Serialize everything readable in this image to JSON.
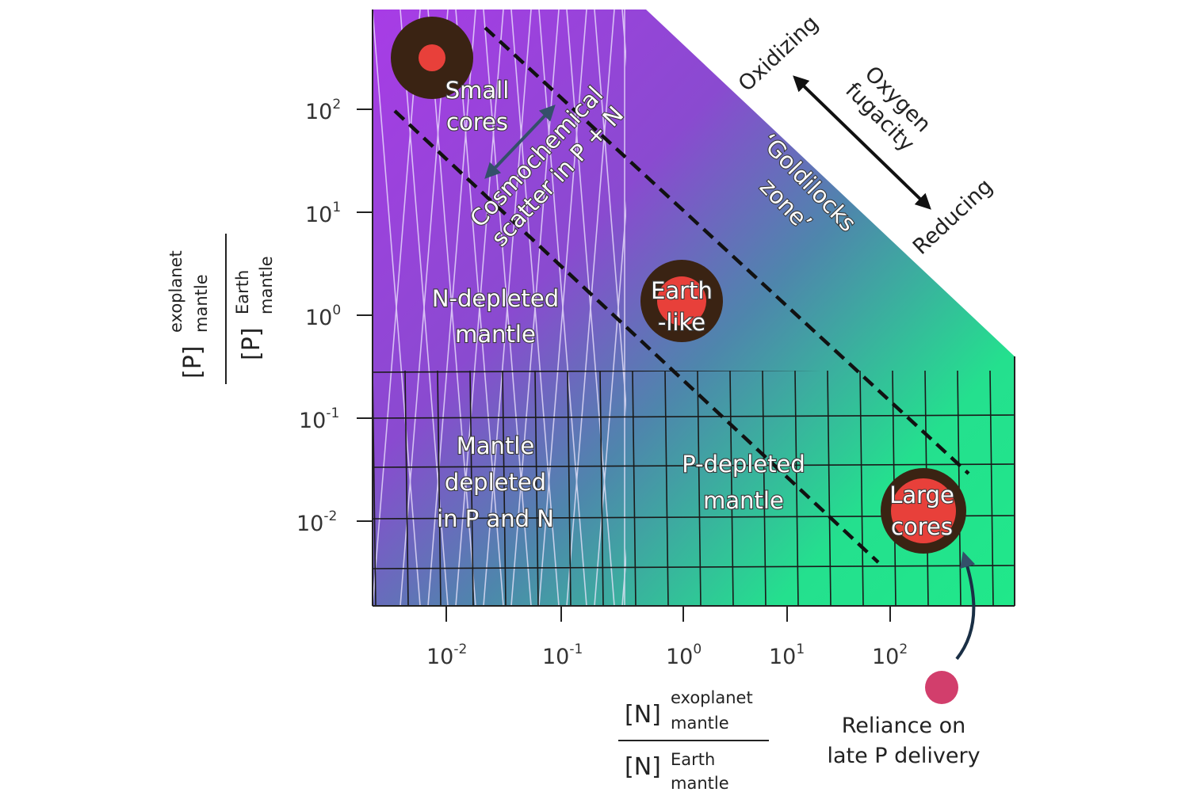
{
  "x_axis": {
    "ticks": [
      {
        "base": "10",
        "exponent": "-2"
      },
      {
        "base": "10",
        "exponent": "-1"
      },
      {
        "base": "10",
        "exponent": "0"
      },
      {
        "base": "10",
        "exponent": "1"
      },
      {
        "base": "10",
        "exponent": "2"
      }
    ],
    "label": {
      "numerator": {
        "symbol": "[N]",
        "sup": "exoplanet",
        "sub": "mantle"
      },
      "denominator": {
        "symbol": "[N]",
        "sup": "Earth",
        "sub": "mantle"
      }
    }
  },
  "y_axis": {
    "ticks": [
      {
        "base": "10",
        "exponent": "2"
      },
      {
        "base": "10",
        "exponent": "1"
      },
      {
        "base": "10",
        "exponent": "0"
      },
      {
        "base": "10",
        "exponent": "-1"
      },
      {
        "base": "10",
        "exponent": "-2"
      }
    ],
    "label": {
      "numerator": {
        "symbol": "[P]",
        "sup": "exoplanet",
        "sub": "mantle"
      },
      "denominator": {
        "symbol": "[P]",
        "sup": "Earth",
        "sub": "mantle"
      }
    }
  },
  "regions": {
    "small_cores": [
      "Small",
      "cores"
    ],
    "earth_like": [
      "Earth",
      "-like"
    ],
    "large_cores": [
      "Large",
      "cores"
    ],
    "n_depleted": [
      "N-depleted",
      "mantle"
    ],
    "p_depleted": [
      "P-depleted",
      "mantle"
    ],
    "both_depleted": [
      "Mantle",
      "depleted",
      "in P and N"
    ],
    "goldilocks": [
      "‘Goldilocks",
      "zone’"
    ],
    "scatter": [
      "Cosmochemical",
      "scatter in P + N"
    ]
  },
  "annotations": {
    "oxidizing": "Oxidizing",
    "oxygen_fugacity": [
      "Oxygen",
      "fugacity"
    ],
    "reducing": "Reducing",
    "late_delivery": [
      "Reliance on",
      "late P delivery"
    ]
  }
}
